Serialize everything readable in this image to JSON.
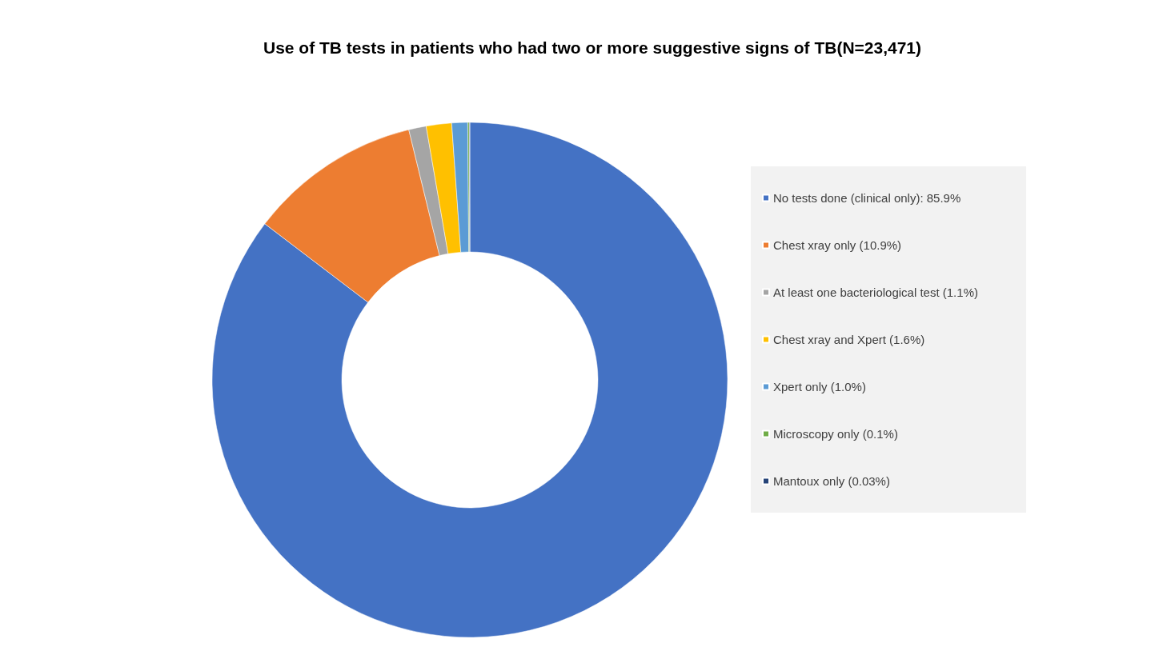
{
  "chart_data": {
    "type": "donut",
    "title": "Use of TB tests in patients who had two or more suggestive signs of TB(N=23,471)",
    "categories": [
      "No tests done (clinical only): 85.9%",
      "Chest xray only (10.9%)",
      "At least one bacteriological test (1.1%)",
      "Chest xray and Xpert (1.6%)",
      "Xpert only (1.0%)",
      "Microscopy only (0.1%)",
      "Mantoux only (0.03%)"
    ],
    "values": [
      85.9,
      10.9,
      1.1,
      1.6,
      1.0,
      0.1,
      0.03
    ],
    "colors": [
      "#4472c4",
      "#ed7d31",
      "#a5a5a5",
      "#ffc000",
      "#5b9bd5",
      "#70ad47",
      "#264478"
    ],
    "legend": "right"
  }
}
